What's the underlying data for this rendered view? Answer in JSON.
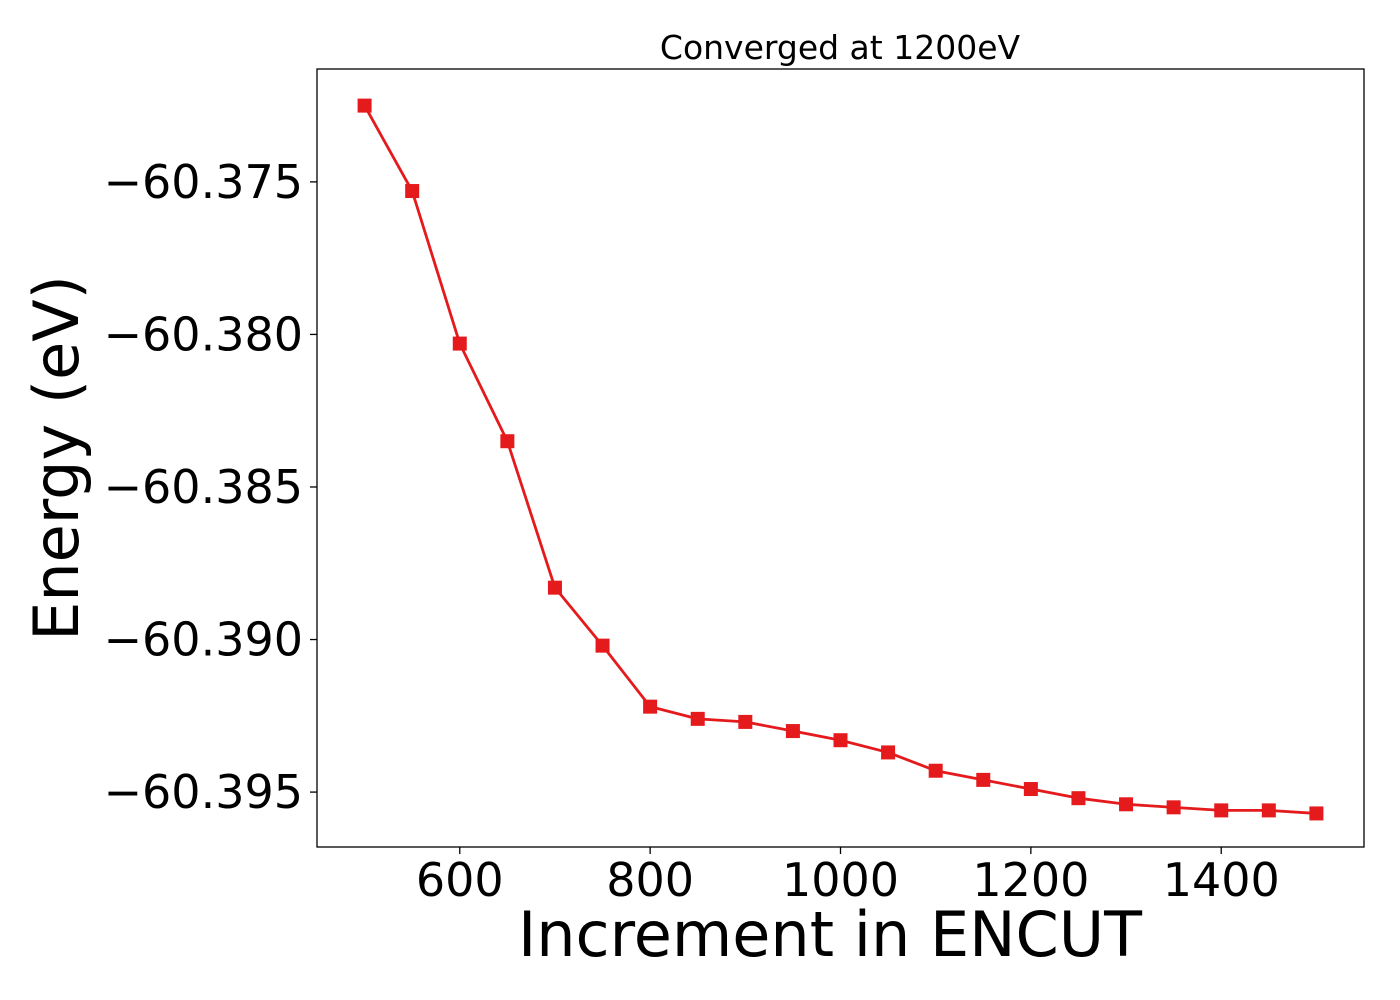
{
  "chart_data": {
    "type": "line",
    "title": "Converged at 1200eV",
    "xlabel": "Increment in ENCUT",
    "ylabel": "Energy (eV)",
    "x": [
      500,
      550,
      600,
      650,
      700,
      750,
      800,
      850,
      900,
      950,
      1000,
      1050,
      1100,
      1150,
      1200,
      1250,
      1300,
      1350,
      1400,
      1450,
      1500
    ],
    "series": [
      {
        "values": [
          -60.3725,
          -60.3753,
          -60.3803,
          -60.3835,
          -60.3883,
          -60.3902,
          -60.3922,
          -60.3926,
          -60.3927,
          -60.393,
          -60.3933,
          -60.3937,
          -60.3943,
          -60.3946,
          -60.3949,
          -60.3952,
          -60.3954,
          -60.3955,
          -60.3956,
          -60.3956,
          -60.3957
        ],
        "color": "#e41a1c",
        "marker": "square"
      }
    ],
    "xticks": [
      600,
      800,
      1000,
      1200,
      1400
    ],
    "xtick_labels": [
      "600",
      "800",
      "1000",
      "1200",
      "1400"
    ],
    "yticks": [
      -60.375,
      -60.38,
      -60.385,
      -60.39,
      -60.395
    ],
    "ytick_labels": [
      "−60.375",
      "−60.380",
      "−60.385",
      "−60.390",
      "−60.395"
    ],
    "xlim": [
      450,
      1550
    ],
    "ylim": [
      -60.3968,
      -60.3713
    ],
    "grid": false,
    "legend": false
  }
}
